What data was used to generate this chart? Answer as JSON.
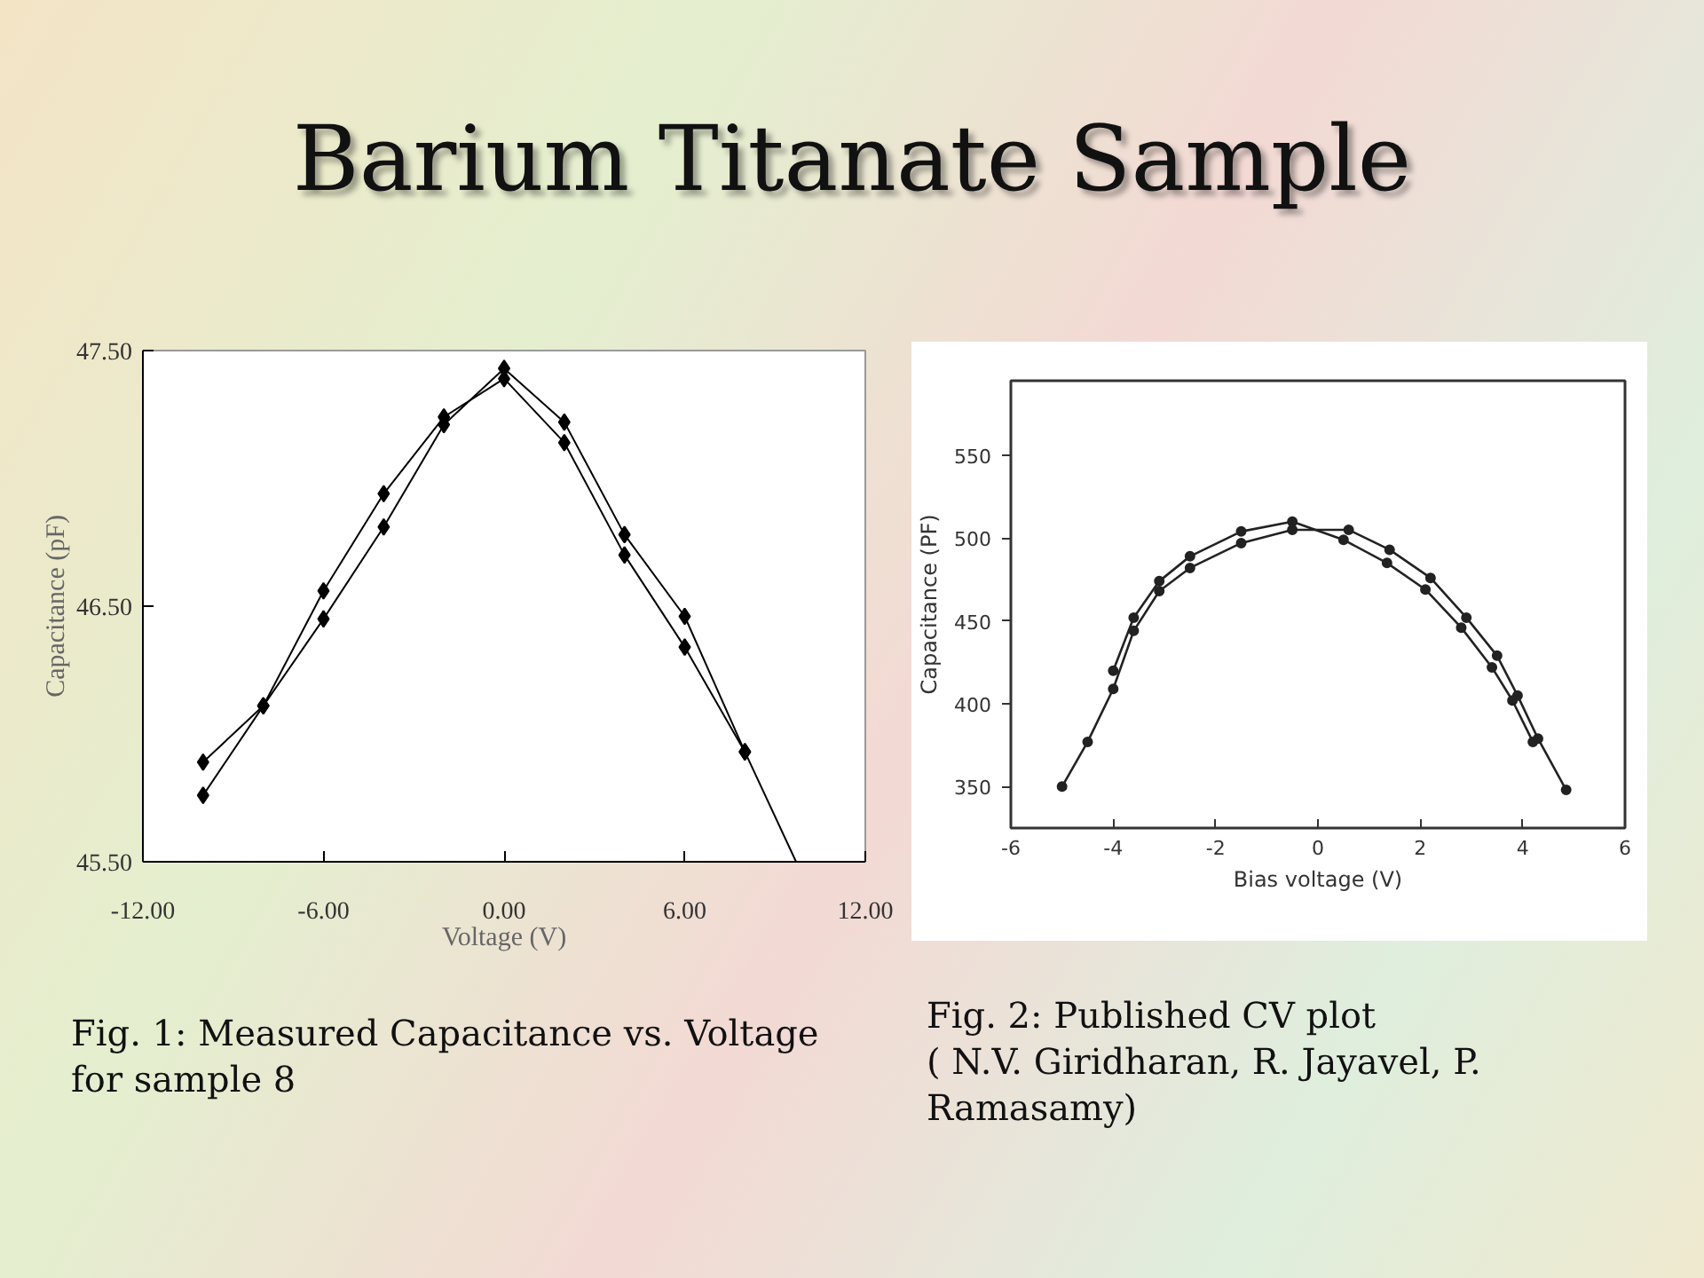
{
  "chart_data": [
    {
      "type": "line",
      "title": "Barium Titanate Sample",
      "xlabel": "Voltage (V)",
      "ylabel": "Capacitance (pF)",
      "xlim": [
        -12,
        12
      ],
      "ylim": [
        45.5,
        47.5
      ],
      "xticks": [
        {
          "value": -12,
          "label": "-12.00"
        },
        {
          "value": -6,
          "label": "-6.00"
        },
        {
          "value": 0,
          "label": "0.00"
        },
        {
          "value": 6,
          "label": "6.00"
        },
        {
          "value": 12,
          "label": "12.00"
        }
      ],
      "yticks": [
        {
          "value": 45.5,
          "label": "45.50"
        },
        {
          "value": 46.5,
          "label": "46.50"
        },
        {
          "value": 47.5,
          "label": "47.50"
        }
      ],
      "marker": "diamond",
      "line_style": "solid",
      "x": [
        -10,
        -8,
        -6,
        -4,
        -2,
        0,
        2,
        4,
        6,
        8
      ],
      "series": [
        {
          "color": "#000000",
          "values": [
            45.76,
            46.11,
            46.45,
            46.81,
            47.21,
            47.43,
            47.22,
            46.78,
            46.46,
            45.93
          ]
        },
        {
          "color": "#000000",
          "values": [
            45.89,
            46.11,
            46.56,
            46.94,
            47.24,
            47.39,
            47.14,
            46.7,
            46.34,
            45.93
          ]
        },
        {
          "color": "#000000",
          "x": [
            8,
            9.7
          ],
          "values": [
            45.93,
            45.5
          ],
          "marker": "none"
        }
      ],
      "annotations": [
        "Fig. 1: Measured Capacitance vs. Voltage for sample 8"
      ]
    },
    {
      "type": "line",
      "xlabel": "Bias voltage (V)",
      "ylabel": "Capacitance (PF)",
      "xlim": [
        -6,
        6
      ],
      "ylim": [
        325,
        595
      ],
      "xticks": [
        -6,
        -4,
        -2,
        0,
        2,
        4,
        6
      ],
      "yticks": [
        350,
        400,
        450,
        500,
        550
      ],
      "marker": "circle",
      "line_style": "solid",
      "series": [
        {
          "color": "#222222",
          "x": [
            -4.0,
            -3.6,
            -3.1,
            -2.5,
            -1.5,
            -0.5,
            0.5,
            1.35,
            2.1,
            2.8,
            3.4,
            3.8,
            4.2
          ],
          "values": [
            420,
            452,
            474,
            489,
            504,
            510,
            499,
            485,
            469,
            446,
            422,
            402,
            377
          ]
        },
        {
          "color": "#222222",
          "x": [
            -5.0,
            -4.5,
            -4.0,
            -3.6,
            -3.1,
            -2.5,
            -1.5,
            -0.5,
            0.6,
            1.4,
            2.2,
            2.9,
            3.5,
            3.9,
            4.3,
            4.85
          ],
          "values": [
            350,
            377,
            409,
            444,
            468,
            482,
            497,
            505,
            505,
            493,
            476,
            452,
            429,
            405,
            379,
            348
          ]
        }
      ],
      "annotations": [
        "Fig. 2: Published CV plot\n( N.V. Giridharan, R. Jayavel, P. Ramasamy)"
      ]
    }
  ]
}
